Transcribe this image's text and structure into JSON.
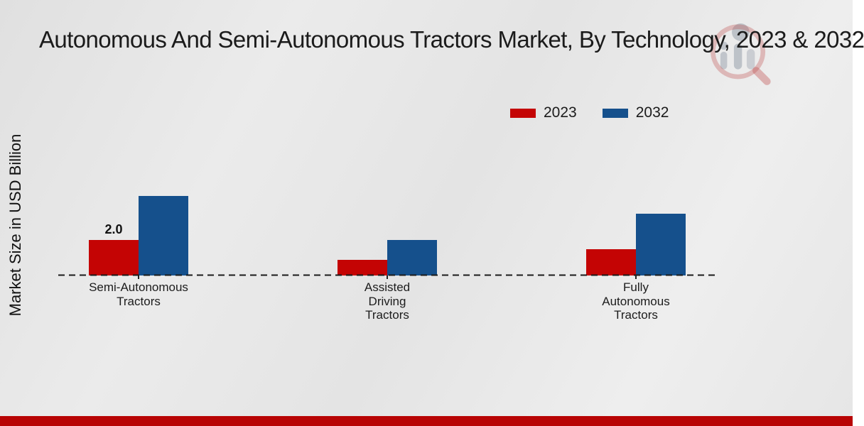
{
  "title": "Autonomous And Semi-Autonomous Tractors Market, By Technology, 2023 & 2032",
  "accent_colors": {
    "red": "#c40404",
    "blue": "#15508c",
    "bottom_band": "#b80404"
  },
  "watermark_icon": "market-research-future-logo",
  "chart_data": {
    "type": "bar",
    "title": "Autonomous And Semi-Autonomous Tractors Market, By Technology, 2023 & 2032",
    "xlabel": "",
    "ylabel": "Market Size in USD Billion",
    "categories": [
      "Semi-Autonomous\nTractors",
      "Assisted\nDriving\nTractors",
      "Fully\nAutonomous\nTractors"
    ],
    "series": [
      {
        "name": "2023",
        "color": "#c40404",
        "values": [
          2.0,
          0.9,
          1.5
        ],
        "labels": [
          "2.0",
          "",
          ""
        ]
      },
      {
        "name": "2032",
        "color": "#15508c",
        "values": [
          4.5,
          2.0,
          3.5
        ],
        "labels": [
          "",
          "",
          ""
        ]
      }
    ],
    "ylim": [
      0,
      5
    ],
    "y_axis_ticks_visible": false,
    "baseline_style": "dashed",
    "legend_position": "top-right",
    "grid": false
  }
}
